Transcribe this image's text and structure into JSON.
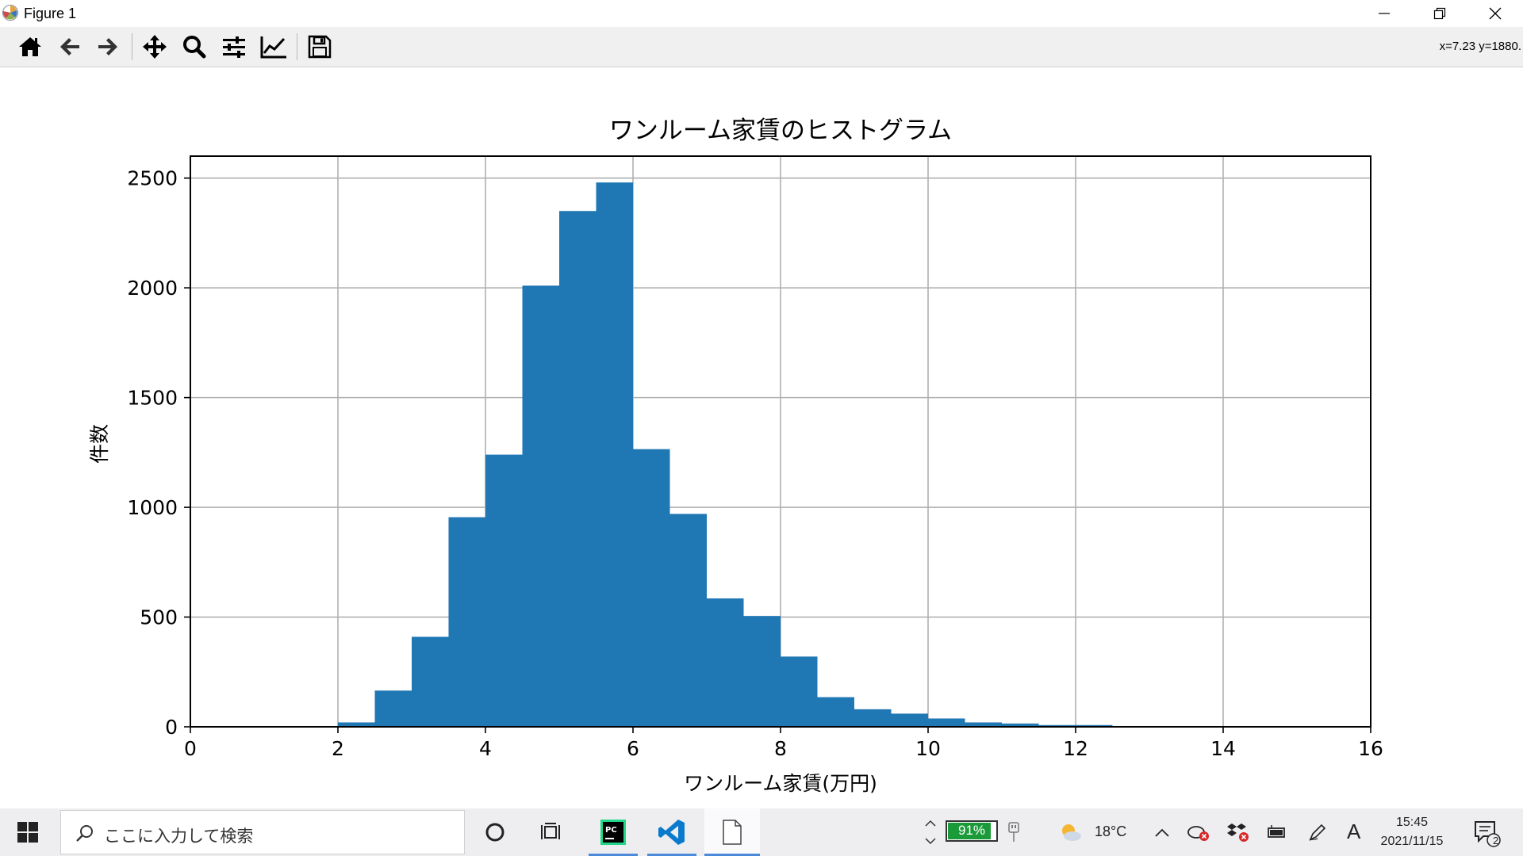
{
  "window": {
    "title": "Figure 1"
  },
  "toolbar": {
    "buttons": [
      "home-icon",
      "back-arrow-icon",
      "forward-arrow-icon",
      "pan-move-icon",
      "zoom-magnifier-icon",
      "subplots-sliders-icon",
      "axes-line-icon",
      "save-floppy-icon"
    ],
    "coords_readout": "x=7.23 y=1880."
  },
  "chart_data": {
    "type": "bar",
    "title": "ワンルーム家賃のヒストグラム",
    "xlabel": "ワンルーム家賃(万円)",
    "ylabel": "件数",
    "xlim": [
      0,
      16
    ],
    "ylim": [
      0,
      2600
    ],
    "xticks": [
      0,
      2,
      4,
      6,
      8,
      10,
      12,
      14,
      16
    ],
    "yticks": [
      0,
      500,
      1000,
      1500,
      2000,
      2500
    ],
    "grid": true,
    "bar_color": "#1f77b4",
    "bins": [
      {
        "x0": 2.0,
        "x1": 2.5,
        "count": 20
      },
      {
        "x0": 2.5,
        "x1": 3.0,
        "count": 165
      },
      {
        "x0": 3.0,
        "x1": 3.5,
        "count": 410
      },
      {
        "x0": 3.5,
        "x1": 4.0,
        "count": 955
      },
      {
        "x0": 4.0,
        "x1": 4.5,
        "count": 1240
      },
      {
        "x0": 4.5,
        "x1": 5.0,
        "count": 2010
      },
      {
        "x0": 5.0,
        "x1": 5.5,
        "count": 2350
      },
      {
        "x0": 5.5,
        "x1": 6.0,
        "count": 2480
      },
      {
        "x0": 6.0,
        "x1": 6.5,
        "count": 1265
      },
      {
        "x0": 6.5,
        "x1": 7.0,
        "count": 970
      },
      {
        "x0": 7.0,
        "x1": 7.5,
        "count": 585
      },
      {
        "x0": 7.5,
        "x1": 8.0,
        "count": 505
      },
      {
        "x0": 8.0,
        "x1": 8.5,
        "count": 320
      },
      {
        "x0": 8.5,
        "x1": 9.0,
        "count": 135
      },
      {
        "x0": 9.0,
        "x1": 9.5,
        "count": 80
      },
      {
        "x0": 9.5,
        "x1": 10.0,
        "count": 60
      },
      {
        "x0": 10.0,
        "x1": 10.5,
        "count": 38
      },
      {
        "x0": 10.5,
        "x1": 11.0,
        "count": 20
      },
      {
        "x0": 11.0,
        "x1": 11.5,
        "count": 15
      },
      {
        "x0": 11.5,
        "x1": 12.0,
        "count": 8
      },
      {
        "x0": 12.0,
        "x1": 12.5,
        "count": 8
      }
    ]
  },
  "taskbar": {
    "search_placeholder": "ここに入力して検索",
    "battery_percent": "91%",
    "battery_level": 0.91,
    "weather_temp": "18°C",
    "ime_label": "A",
    "time": "15:45",
    "date": "2021/11/15",
    "notification_count": "2",
    "colors": {
      "battery": "#1b9a3a",
      "active_underline": "#4a8ad8",
      "pycharm": "#21d789",
      "vscode": "#0a7acc"
    }
  }
}
